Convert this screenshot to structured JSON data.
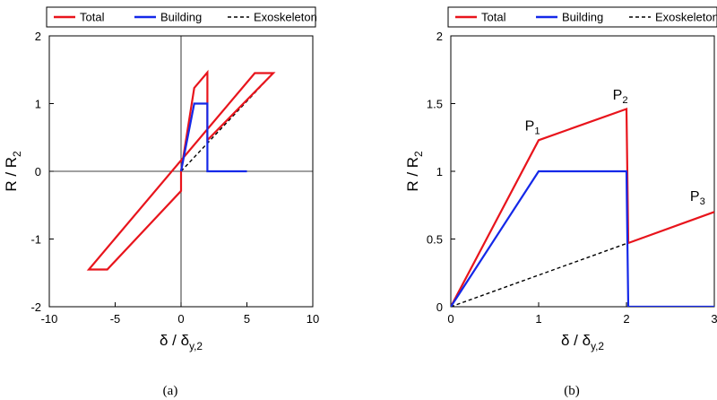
{
  "chart_data": [
    {
      "type": "line",
      "caption": "(a)",
      "xlabel": "δ / δ",
      "xlabel_sub": "y,2",
      "ylabel": "R / R",
      "ylabel_sub": "2",
      "xlim": [
        -10,
        10
      ],
      "ylim": [
        -2,
        2
      ],
      "xticks": [
        "-10",
        "-5",
        "0",
        "5",
        "10"
      ],
      "yticks": [
        "-2",
        "-1",
        "0",
        "1",
        "2"
      ],
      "grid": false,
      "zero_lines": true,
      "legend": {
        "placement": "top",
        "entries": [
          "Total",
          "Building",
          "Exoskeleton"
        ]
      },
      "series": [
        {
          "name": "Exoskeleton",
          "color": "#000000",
          "style": "dashed",
          "x": [
            0,
            7,
            5.6,
            -7,
            -5.6,
            0
          ],
          "y": [
            0,
            1.45,
            1.45,
            -1.45,
            -1.45,
            -0.29
          ]
        },
        {
          "name": "Total",
          "color": "#e8141c",
          "style": "solid",
          "x": [
            0,
            1,
            2,
            2,
            7,
            5.6,
            -7,
            -5.6,
            0,
            0
          ],
          "y": [
            0,
            1.23,
            1.46,
            0.46,
            1.45,
            1.45,
            -1.45,
            -1.45,
            -0.29,
            0
          ]
        },
        {
          "name": "Building",
          "color": "#1428e8",
          "style": "solid",
          "x": [
            0,
            1,
            2,
            2,
            5
          ],
          "y": [
            0,
            1,
            1,
            0,
            0
          ]
        }
      ],
      "annotations": []
    },
    {
      "type": "line",
      "caption": "(b)",
      "xlabel": "δ / δ",
      "xlabel_sub": "y,2",
      "ylabel": "R / R",
      "ylabel_sub": "2",
      "xlim": [
        0,
        3
      ],
      "ylim": [
        0,
        2
      ],
      "xticks": [
        "0",
        "1",
        "2",
        "3"
      ],
      "yticks": [
        "0",
        "0.5",
        "1",
        "1.5",
        "2"
      ],
      "grid": false,
      "legend": {
        "placement": "top",
        "entries": [
          "Total",
          "Building",
          "Exoskeleton"
        ]
      },
      "series": [
        {
          "name": "Exoskeleton",
          "color": "#000000",
          "style": "dashed",
          "x": [
            0,
            3
          ],
          "y": [
            0,
            0.7
          ]
        },
        {
          "name": "Total",
          "color": "#e8141c",
          "style": "solid",
          "x": [
            0,
            1,
            2,
            2.02,
            3
          ],
          "y": [
            0,
            1.23,
            1.46,
            0.47,
            0.7
          ]
        },
        {
          "name": "Building",
          "color": "#1428e8",
          "style": "solid",
          "x": [
            0,
            1,
            2,
            2.02,
            3
          ],
          "y": [
            0,
            1,
            1,
            0,
            0
          ]
        }
      ],
      "annotations": [
        {
          "label": "P",
          "sub": "1",
          "x": 0.93,
          "y": 1.3
        },
        {
          "label": "P",
          "sub": "2",
          "x": 1.93,
          "y": 1.53
        },
        {
          "label": "P",
          "sub": "3",
          "x": 2.81,
          "y": 0.78
        }
      ]
    }
  ]
}
